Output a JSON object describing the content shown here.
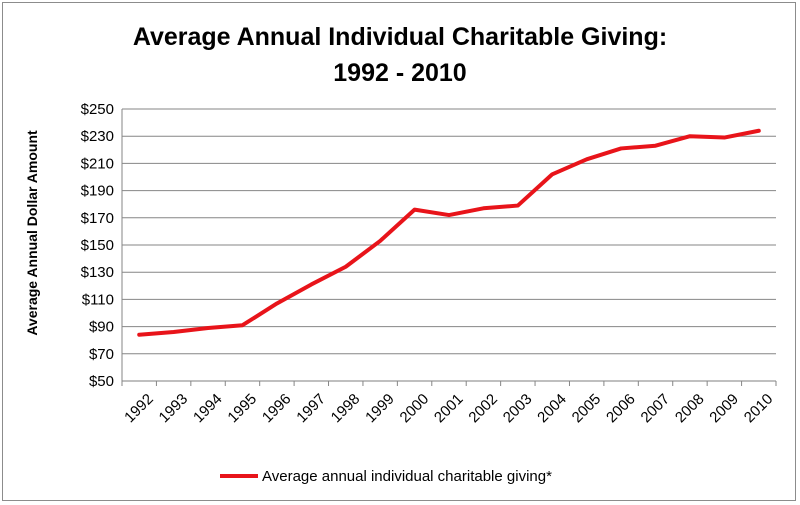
{
  "chart_data": {
    "type": "line",
    "title_line1": "Average Annual Individual Charitable Giving:",
    "title_line2": "1992 - 2010",
    "xlabel": "",
    "ylabel": "Average Annual Dollar Amount",
    "categories": [
      "1992",
      "1993",
      "1994",
      "1995",
      "1996",
      "1997",
      "1998",
      "1999",
      "2000",
      "2001",
      "2002",
      "2003",
      "2004",
      "2005",
      "2006",
      "2007",
      "2008",
      "2009",
      "2010"
    ],
    "series": [
      {
        "name": "Average annual individual charitable giving*",
        "color": "#e8141a",
        "values": [
          84,
          86,
          89,
          91,
          107,
          121,
          134,
          153,
          176,
          172,
          177,
          179,
          202,
          213,
          221,
          223,
          230,
          229,
          234
        ]
      }
    ],
    "ylim": [
      50,
      250
    ],
    "yticks": [
      50,
      70,
      90,
      110,
      130,
      150,
      170,
      190,
      210,
      230,
      250
    ],
    "ytick_labels": [
      "$50",
      "$70",
      "$90",
      "$110",
      "$130",
      "$150",
      "$170",
      "$190",
      "$210",
      "$230",
      "$250"
    ],
    "grid": true,
    "legend_position": "bottom"
  }
}
